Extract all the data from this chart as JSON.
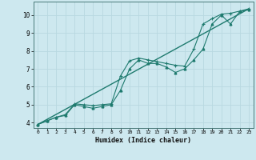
{
  "title": "",
  "xlabel": "Humidex (Indice chaleur)",
  "ylabel": "",
  "bg_color": "#cde8ef",
  "grid_color": "#b8d8e0",
  "line_color": "#1e7a6e",
  "xlim": [
    -0.5,
    23.5
  ],
  "ylim": [
    3.7,
    10.75
  ],
  "xticks": [
    0,
    1,
    2,
    3,
    4,
    5,
    6,
    7,
    8,
    9,
    10,
    11,
    12,
    13,
    14,
    15,
    16,
    17,
    18,
    19,
    20,
    21,
    22,
    23
  ],
  "yticks": [
    4,
    5,
    6,
    7,
    8,
    9,
    10
  ],
  "line1_x": [
    0,
    1,
    2,
    3,
    4,
    5,
    6,
    7,
    8,
    9,
    10,
    11,
    12,
    13,
    14,
    15,
    16,
    17,
    18,
    19,
    20,
    21,
    22,
    23
  ],
  "line1_y": [
    3.9,
    4.1,
    4.3,
    4.4,
    5.0,
    4.9,
    4.8,
    4.9,
    5.0,
    5.8,
    7.0,
    7.5,
    7.3,
    7.3,
    7.1,
    6.8,
    7.0,
    7.5,
    8.1,
    9.5,
    10.0,
    9.5,
    10.2,
    10.3
  ],
  "line2_x": [
    0,
    1,
    2,
    3,
    4,
    5,
    6,
    7,
    8,
    9,
    10,
    11,
    12,
    13,
    14,
    15,
    16,
    17,
    18,
    19,
    20,
    21,
    22,
    23
  ],
  "line2_y": [
    3.9,
    4.1,
    4.3,
    4.45,
    5.05,
    5.0,
    4.95,
    5.0,
    5.05,
    6.6,
    7.45,
    7.6,
    7.5,
    7.4,
    7.3,
    7.2,
    7.15,
    8.1,
    9.5,
    9.8,
    10.05,
    10.1,
    10.22,
    10.35
  ],
  "line3_x": [
    0,
    23
  ],
  "line3_y": [
    3.9,
    10.35
  ]
}
